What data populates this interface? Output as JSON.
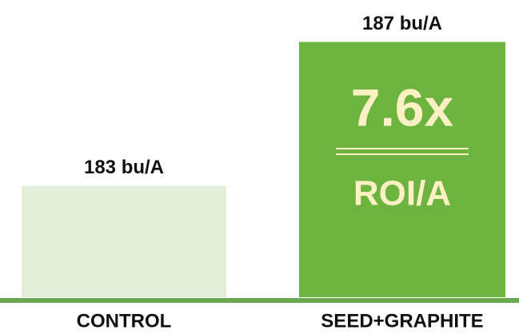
{
  "chart_data": {
    "type": "bar",
    "categories": [
      "CONTROL",
      "SEED+GRAPHITE"
    ],
    "values": [
      183,
      187
    ],
    "value_labels": [
      "183 bu/A",
      "187 bu/A"
    ],
    "colors": [
      "#e3eed9",
      "#6db33f"
    ],
    "baseline_color": "#6aa84f",
    "annotations": [
      "7.6x",
      "ROI/A"
    ],
    "annotation_color": "#fdf0c4",
    "ylim": [
      179.9,
      188
    ]
  }
}
